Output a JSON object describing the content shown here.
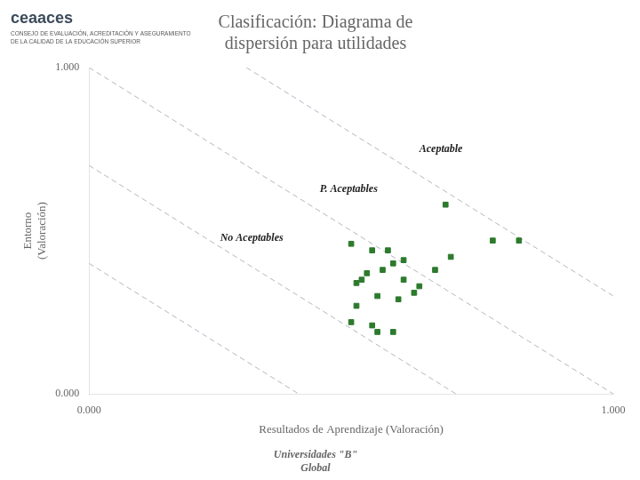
{
  "chart_data": {
    "type": "scatter",
    "title": "Clasificación: Diagrama de\ndispersión para utilidades",
    "subtitle": "Universidades \"B\"\nGlobal",
    "xlabel": "Resultados de Aprendizaje (Valoración)",
    "ylabel": "Entorno\n(Valoración)",
    "xlim": [
      0.0,
      1.0
    ],
    "ylim": [
      0.0,
      1.0
    ],
    "xticks": [
      {
        "value": 0.0,
        "label": "0.000"
      },
      {
        "value": 1.0,
        "label": "1.000"
      }
    ],
    "yticks": [
      {
        "value": 0.0,
        "label": "0.000"
      },
      {
        "value": 1.0,
        "label": "1.000"
      }
    ],
    "grid": false,
    "series": [
      {
        "type": "line",
        "color": "#b0b8c0",
        "line_style": "dashed",
        "x": [
          0.3,
          1.0
        ],
        "values": [
          1.0,
          0.3
        ]
      },
      {
        "type": "line",
        "color": "#b0b8c0",
        "line_style": "dashed",
        "x": [
          0.0,
          1.0
        ],
        "values": [
          1.0,
          0.0
        ]
      },
      {
        "type": "line",
        "color": "#b0b8c0",
        "line_style": "dashed",
        "x": [
          0.0,
          0.7
        ],
        "values": [
          0.7,
          0.0
        ]
      },
      {
        "type": "line",
        "color": "#b0b8c0",
        "line_style": "dashed",
        "x": [
          0.0,
          0.4
        ],
        "values": [
          0.4,
          0.0
        ]
      },
      {
        "type": "scatter",
        "color": "#2d7a2d",
        "marker": "square",
        "x": [
          0.68,
          0.77,
          0.82,
          0.5,
          0.54,
          0.57,
          0.56,
          0.58,
          0.53,
          0.52,
          0.51,
          0.6,
          0.63,
          0.55,
          0.59,
          0.51,
          0.5,
          0.54,
          0.55,
          0.58,
          0.62,
          0.66,
          0.69,
          0.6
        ],
        "values": [
          0.58,
          0.47,
          0.47,
          0.46,
          0.44,
          0.44,
          0.38,
          0.4,
          0.37,
          0.35,
          0.34,
          0.35,
          0.33,
          0.3,
          0.29,
          0.27,
          0.22,
          0.21,
          0.19,
          0.19,
          0.31,
          0.38,
          0.42,
          0.41
        ]
      }
    ],
    "annotations": [
      {
        "text": "Aceptable",
        "x": 0.63,
        "y": 0.74
      },
      {
        "text": "P. Aceptables",
        "x": 0.44,
        "y": 0.62
      },
      {
        "text": "No Aceptables",
        "x": 0.25,
        "y": 0.47
      },
      {
        "text": "ceaaces"
      },
      {
        "text": "CONSEJO DE EVALUACIÓN, ACREDITACIÓN Y ASEGURAMIENTO\nDE LA CALIDAD DE LA EDUCACIÓN SUPERIOR"
      }
    ]
  }
}
